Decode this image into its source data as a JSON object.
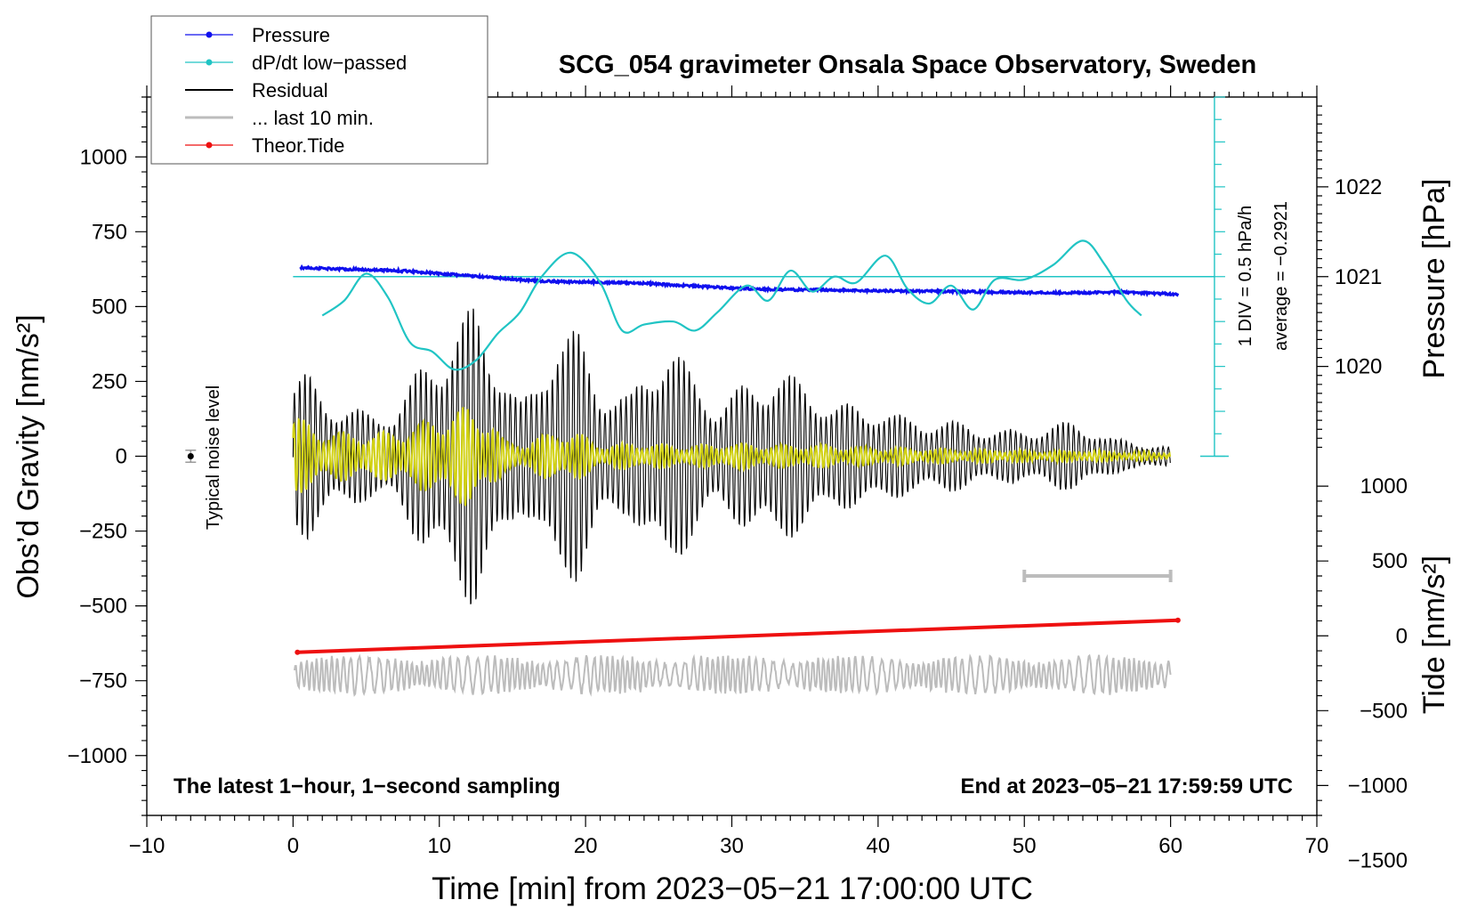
{
  "chart_data": {
    "type": "line",
    "title": "SCG_054 gravimeter Onsala Space Observatory, Sweden",
    "xlabel": "Time [min] from 2023−05−21 17:00:00 UTC",
    "ylabel_left": "Obs’d Gravity [nm/s²]",
    "ylabel_right_top": "Pressure [hPa]",
    "ylabel_right_bottom": "Tide [nm/s²]",
    "xlim": [
      -10,
      70
    ],
    "ylim": [
      -1200,
      1200
    ],
    "x_ticks": [
      -10,
      0,
      10,
      20,
      30,
      40,
      50,
      60,
      70
    ],
    "x_tick_labels": [
      "−10",
      "0",
      "10",
      "20",
      "30",
      "40",
      "50",
      "60",
      "70"
    ],
    "y_ticks": [
      1000,
      750,
      500,
      250,
      0,
      -250,
      -500,
      -750,
      -1000
    ],
    "y_tick_labels": [
      "1000",
      "750",
      "500",
      "250",
      "0",
      "−250",
      "−500",
      "−750",
      "−1000"
    ],
    "pressure_axis": {
      "ticks": [
        1022,
        1021,
        1020
      ],
      "tick_labels": [
        "1022",
        "1021",
        "1020"
      ],
      "anchor_gravity_1021": 600,
      "gravity_per_hpa": 300
    },
    "tide_axis": {
      "ticks": [
        1000,
        500,
        0,
        -500,
        -1000,
        -1500
      ],
      "tick_labels": [
        "1000",
        "500",
        "0",
        "−500",
        "−1000",
        "−1500"
      ],
      "anchor_gravity_at_0": -600,
      "gravity_per_unit": 0.5
    },
    "legend": {
      "position": "top-left",
      "entries": [
        {
          "label": "Pressure",
          "color": "#1010ee",
          "style": "line-dot"
        },
        {
          "label": "dP/dt low−passed",
          "color": "#20c4c4",
          "style": "line-dot"
        },
        {
          "label": "Residual",
          "color": "#000000",
          "style": "line"
        },
        {
          "label": "... last 10 min.",
          "color": "#bcbcbc",
          "style": "line"
        },
        {
          "label": "Theor.Tide",
          "color": "#ee1010",
          "style": "line-dot"
        }
      ]
    },
    "dpdt_scale": {
      "label_div": "1 DIV = 0.5 hPa/h",
      "label_avg": "average = −0.2921",
      "x": 63,
      "gravity_top": 1200,
      "gravity_bottom": 0,
      "baseline_gravity": 600
    },
    "noise_level": {
      "label": "Typical noise level",
      "x": -7,
      "y": 0,
      "err": 20
    },
    "bottom_left_note": "The latest 1−hour, 1−second sampling",
    "bottom_right_note": "End at 2023−05−21 17:59:59 UTC",
    "last10_bar": {
      "x_start": 50,
      "x_end": 60,
      "y": -400
    },
    "series": [
      {
        "name": "Pressure",
        "color": "#1010ee",
        "x": [
          0.5,
          3,
          6,
          8,
          10,
          12,
          14,
          16,
          18,
          20,
          22,
          24,
          26,
          28,
          30,
          32,
          34,
          36,
          38,
          40,
          42,
          44,
          46,
          48,
          50,
          52,
          54,
          56,
          58,
          60.5
        ],
        "y": [
          630,
          626,
          622,
          618,
          610,
          603,
          595,
          588,
          583,
          582,
          580,
          578,
          572,
          567,
          562,
          558,
          556,
          556,
          554,
          553,
          552,
          551,
          550,
          548,
          547,
          546,
          546,
          548,
          546,
          541
        ]
      },
      {
        "name": "dP/dt low−passed",
        "color": "#20c4c4",
        "x": [
          2,
          3.5,
          5,
          6.5,
          8,
          9.5,
          11,
          12.5,
          14,
          15.5,
          17,
          19,
          21,
          22.5,
          24,
          26,
          27.5,
          29,
          31,
          32.5,
          34,
          35.5,
          37,
          38.5,
          40.5,
          42,
          43.5,
          45,
          46.5,
          48,
          50,
          52,
          54,
          55.5,
          57,
          58
        ],
        "y": [
          470,
          520,
          610,
          530,
          380,
          350,
          290,
          320,
          410,
          480,
          600,
          680,
          580,
          420,
          440,
          450,
          420,
          480,
          570,
          520,
          620,
          550,
          600,
          580,
          670,
          560,
          510,
          570,
          490,
          590,
          590,
          640,
          720,
          640,
          520,
          470
        ]
      },
      {
        "name": "Residual",
        "color": "#000000",
        "x": [
          0,
          60
        ],
        "envelope": [
          [
            0,
            260
          ],
          [
            1,
            280
          ],
          [
            3,
            180
          ],
          [
            5,
            150
          ],
          [
            7,
            160
          ],
          [
            9,
            330
          ],
          [
            11,
            440
          ],
          [
            12.5,
            520
          ],
          [
            14,
            360
          ],
          [
            15.5,
            180
          ],
          [
            16.5,
            240
          ],
          [
            18,
            460
          ],
          [
            19.5,
            420
          ],
          [
            21,
            250
          ],
          [
            23,
            200
          ],
          [
            25.5,
            420
          ],
          [
            27,
            300
          ],
          [
            29,
            180
          ],
          [
            31,
            250
          ],
          [
            33,
            300
          ],
          [
            35,
            250
          ],
          [
            37,
            180
          ],
          [
            40,
            170
          ],
          [
            42,
            130
          ],
          [
            45,
            120
          ],
          [
            48,
            90
          ],
          [
            50,
            90
          ],
          [
            53.5,
            120
          ],
          [
            56,
            60
          ],
          [
            60,
            30
          ]
        ]
      },
      {
        "name": "Residual (smoothed)",
        "color": "#d2d214",
        "x": [
          0,
          60
        ],
        "envelope": [
          [
            0,
            140
          ],
          [
            2,
            90
          ],
          [
            4,
            80
          ],
          [
            6,
            80
          ],
          [
            8,
            100
          ],
          [
            10,
            140
          ],
          [
            12,
            170
          ],
          [
            13.5,
            130
          ],
          [
            14.5,
            50
          ],
          [
            16,
            50
          ],
          [
            18,
            90
          ],
          [
            19.5,
            80
          ],
          [
            21,
            40
          ],
          [
            24,
            45
          ],
          [
            27,
            35
          ],
          [
            30,
            45
          ],
          [
            33,
            40
          ],
          [
            36,
            40
          ],
          [
            40,
            30
          ],
          [
            45,
            25
          ],
          [
            50,
            20
          ],
          [
            55,
            18
          ],
          [
            60,
            12
          ]
        ]
      },
      {
        "name": "... last 10 min.",
        "color": "#bcbcbc",
        "x": [
          0,
          60
        ],
        "center": -730,
        "amplitude": 50
      },
      {
        "name": "Theor.Tide",
        "color": "#ee1010",
        "x": [
          0.3,
          60.5
        ],
        "y": [
          -655,
          -548
        ]
      }
    ]
  }
}
